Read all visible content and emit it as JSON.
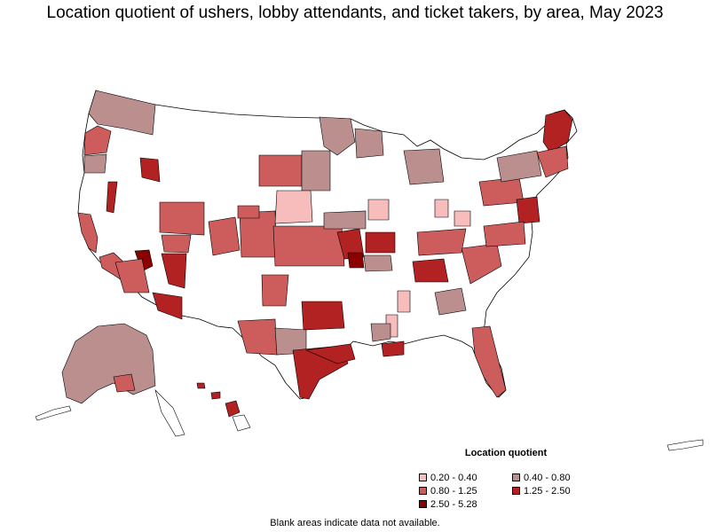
{
  "title": "Location quotient of ushers, lobby attendants, and ticket takers, by area, May 2023",
  "legend": {
    "title": "Location quotient",
    "items": [
      {
        "label": "0.20 - 0.40",
        "color": "#f7bcbc"
      },
      {
        "label": "0.40 - 0.80",
        "color": "#bc8f8f"
      },
      {
        "label": "0.80 - 1.25",
        "color": "#cd5c5c"
      },
      {
        "label": "1.25 - 2.50",
        "color": "#b22222"
      },
      {
        "label": "2.50 - 5.28",
        "color": "#8b0000"
      }
    ]
  },
  "note": "Blank areas indicate data not available.",
  "map": {
    "type": "choropleth",
    "regions": [
      "contiguous-us",
      "alaska",
      "hawaii",
      "puerto-rico"
    ],
    "areas": [
      {
        "level": 1,
        "region": "washington"
      },
      {
        "level": 2,
        "region": "northwest-oregon"
      },
      {
        "level": 4,
        "region": "utah-northeast"
      },
      {
        "level": 2,
        "region": "california-coast"
      },
      {
        "level": 2,
        "region": "southern-california"
      },
      {
        "level": 5,
        "region": "nevada-south"
      },
      {
        "level": 4,
        "region": "arizona-north"
      },
      {
        "level": 3,
        "region": "arizona-central"
      },
      {
        "level": 3,
        "region": "arizona-south"
      },
      {
        "level": 3,
        "region": "colorado-west"
      },
      {
        "level": 3,
        "region": "colorado-east"
      },
      {
        "level": 3,
        "region": "wyoming-south"
      },
      {
        "level": 2,
        "region": "south-dakota-west"
      },
      {
        "level": 1,
        "region": "north-dakota"
      },
      {
        "level": 2,
        "region": "minnesota"
      },
      {
        "level": 3,
        "region": "nebraska-west"
      },
      {
        "level": 0,
        "region": "iowa-west"
      },
      {
        "level": 2,
        "region": "kansas"
      },
      {
        "level": 4,
        "region": "oklahoma-northeast"
      },
      {
        "level": 5,
        "region": "oklahoma-arkansas"
      },
      {
        "level": 3,
        "region": "new-mexico-east"
      },
      {
        "level": 3,
        "region": "texas-west"
      },
      {
        "level": 1,
        "region": "texas-central"
      },
      {
        "level": 4,
        "region": "texas-gulf"
      },
      {
        "level": 4,
        "region": "texas-north"
      },
      {
        "level": 0,
        "region": "mississippi-north"
      },
      {
        "level": 0,
        "region": "alabama-north"
      },
      {
        "level": 4,
        "region": "florida-panhandle"
      },
      {
        "level": 3,
        "region": "florida-peninsula"
      },
      {
        "level": 1,
        "region": "georgia"
      },
      {
        "level": 3,
        "region": "carolinas"
      },
      {
        "level": 4,
        "region": "tennessee"
      },
      {
        "level": 2,
        "region": "kentucky"
      },
      {
        "level": 1,
        "region": "missouri"
      },
      {
        "level": 4,
        "region": "missouri-east"
      },
      {
        "level": 0,
        "region": "illinois"
      },
      {
        "level": 1,
        "region": "wisconsin"
      },
      {
        "level": 1,
        "region": "michigan"
      },
      {
        "level": 0,
        "region": "indiana"
      },
      {
        "level": 0,
        "region": "ohio"
      },
      {
        "level": 2,
        "region": "pennsylvania"
      },
      {
        "level": 1,
        "region": "new-york"
      },
      {
        "level": 4,
        "region": "maine"
      },
      {
        "level": 3,
        "region": "new-england"
      },
      {
        "level": 4,
        "region": "mid-atlantic"
      },
      {
        "level": 3,
        "region": "virginia"
      },
      {
        "level": 1,
        "region": "alaska"
      },
      {
        "level": 3,
        "region": "alaska-south"
      },
      {
        "level": 3,
        "region": "hawaii"
      }
    ]
  }
}
